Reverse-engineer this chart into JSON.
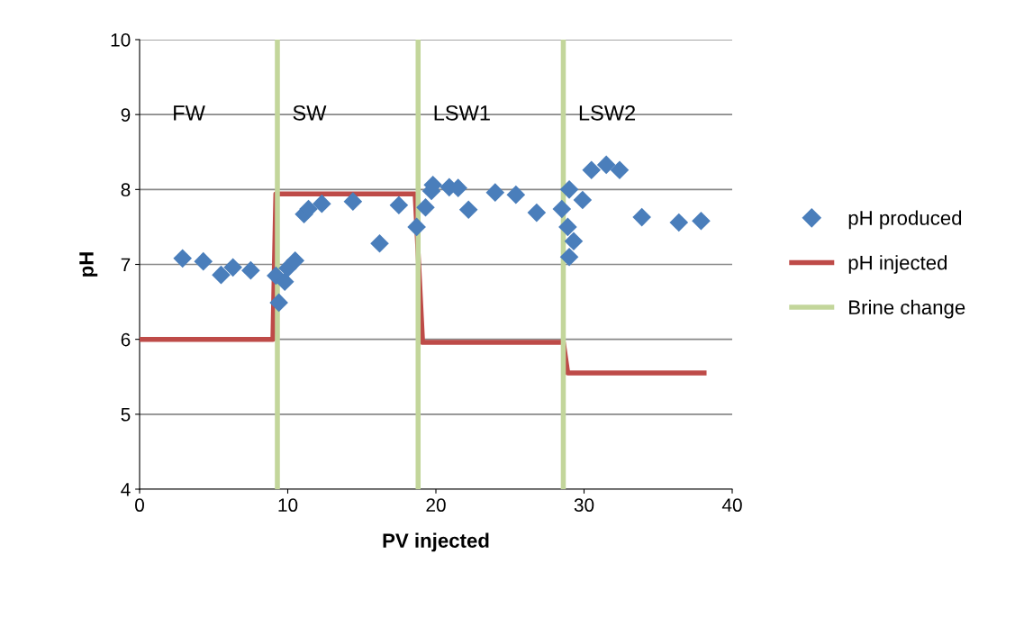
{
  "chart_data": {
    "type": "scatter",
    "xlabel": "PV injected",
    "ylabel": "pH",
    "xlim": [
      0,
      40
    ],
    "xticks": [
      0,
      10,
      20,
      30,
      40
    ],
    "ylim": [
      4,
      10
    ],
    "yticks": [
      4,
      5,
      6,
      7,
      8,
      9,
      10
    ],
    "grid": "y",
    "legend": "right",
    "marker": "diamond",
    "series": [
      {
        "name": "pH produced",
        "color": "#4a7ebb",
        "x": [
          2.9,
          4.3,
          5.5,
          6.3,
          7.5,
          9.2,
          9.4,
          9.8,
          10.0,
          10.5,
          11.1,
          11.4,
          12.3,
          14.4,
          16.2,
          17.5,
          18.7,
          19.3,
          19.7,
          19.8,
          20.9,
          21.5,
          22.2,
          24.0,
          25.4,
          26.8,
          28.5,
          28.9,
          29.0,
          29.3,
          29.0,
          29.9,
          30.5,
          31.5,
          32.4,
          33.9,
          36.4,
          37.9
        ],
        "values": [
          7.08,
          7.04,
          6.86,
          6.96,
          6.92,
          6.85,
          6.49,
          6.77,
          6.95,
          7.05,
          7.67,
          7.74,
          7.81,
          7.84,
          7.28,
          7.79,
          7.5,
          7.76,
          7.98,
          8.06,
          8.03,
          8.02,
          7.73,
          7.96,
          7.93,
          7.69,
          7.74,
          7.5,
          7.1,
          7.31,
          8.0,
          7.86,
          8.26,
          8.33,
          8.26,
          7.63,
          7.56,
          7.58
        ]
      },
      {
        "name": "pH injected",
        "type": "line",
        "color": "#be4b48",
        "marker": "none",
        "x": [
          0,
          9.0,
          9.2,
          18.6,
          19.1,
          28.6,
          28.9,
          38.1
        ],
        "values": [
          6.0,
          6.0,
          7.94,
          7.94,
          5.96,
          5.96,
          5.55,
          5.55
        ]
      },
      {
        "name": "Brine change",
        "type": "line",
        "color": "#c3d69b",
        "marker": "none",
        "x": [
          9.3,
          9.3
        ],
        "values": [
          4,
          10
        ]
      },
      {
        "type": "line",
        "color": "#c3d69b",
        "marker": "none",
        "x": [
          18.8,
          18.8
        ],
        "values": [
          4,
          10
        ]
      },
      {
        "type": "line",
        "color": "#c3d69b",
        "marker": "none",
        "x": [
          28.6,
          28.6
        ],
        "values": [
          4,
          10
        ]
      }
    ],
    "annotations": [
      "FW",
      "SW",
      "LSW1",
      "LSW2"
    ]
  }
}
